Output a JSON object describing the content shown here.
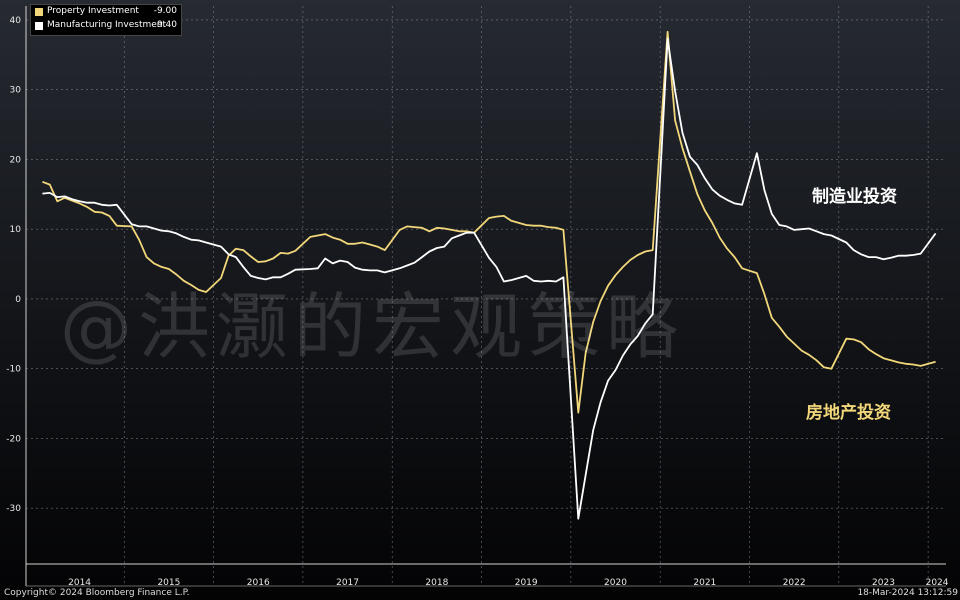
{
  "legend": {
    "items": [
      {
        "label": "Property Investment",
        "value": "-9.00",
        "color": "#f2d77a"
      },
      {
        "label": "Manufacturing Investment",
        "value": "9.40",
        "color": "#ffffff"
      }
    ]
  },
  "watermark": "@洪灏的宏观策略",
  "annotations": {
    "manufacturing": "制造业投资",
    "property": "房地产投资"
  },
  "footer": {
    "copyright": "Copyright© 2024 Bloomberg Finance L.P.",
    "timestamp": "18-Mar-2024 13:12:59"
  },
  "chart_data": {
    "type": "line",
    "ylim": [
      -38,
      42
    ],
    "yticks": [
      40,
      30,
      20,
      10,
      0,
      -10,
      -20,
      -30
    ],
    "grid": true,
    "legend_position": "top-left",
    "x_years": [
      "2014",
      "2015",
      "2016",
      "2017",
      "2018",
      "2019",
      "2020",
      "2021",
      "2022",
      "2023",
      "2024"
    ],
    "series": [
      {
        "name": "Property Investment",
        "color": "#f2d77a",
        "x": [
          "2014-02",
          "2014-03",
          "2014-04",
          "2014-05",
          "2014-06",
          "2014-07",
          "2014-08",
          "2014-09",
          "2014-10",
          "2014-11",
          "2014-12",
          "2015-02",
          "2015-03",
          "2015-04",
          "2015-05",
          "2015-06",
          "2015-07",
          "2015-08",
          "2015-09",
          "2015-10",
          "2015-11",
          "2015-12",
          "2016-02",
          "2016-03",
          "2016-04",
          "2016-05",
          "2016-06",
          "2016-07",
          "2016-08",
          "2016-09",
          "2016-10",
          "2016-11",
          "2016-12",
          "2017-02",
          "2017-03",
          "2017-04",
          "2017-05",
          "2017-06",
          "2017-07",
          "2017-08",
          "2017-09",
          "2017-10",
          "2017-11",
          "2017-12",
          "2018-02",
          "2018-03",
          "2018-04",
          "2018-05",
          "2018-06",
          "2018-07",
          "2018-08",
          "2018-09",
          "2018-10",
          "2018-11",
          "2018-12",
          "2019-02",
          "2019-03",
          "2019-04",
          "2019-05",
          "2019-06",
          "2019-07",
          "2019-08",
          "2019-09",
          "2019-10",
          "2019-11",
          "2019-12",
          "2020-02",
          "2020-03",
          "2020-04",
          "2020-05",
          "2020-06",
          "2020-07",
          "2020-08",
          "2020-09",
          "2020-10",
          "2020-11",
          "2020-12",
          "2021-02",
          "2021-03",
          "2021-04",
          "2021-05",
          "2021-06",
          "2021-07",
          "2021-08",
          "2021-09",
          "2021-10",
          "2021-11",
          "2021-12",
          "2022-02",
          "2022-03",
          "2022-04",
          "2022-05",
          "2022-06",
          "2022-07",
          "2022-08",
          "2022-09",
          "2022-10",
          "2022-11",
          "2022-12",
          "2023-02",
          "2023-03",
          "2023-04",
          "2023-05",
          "2023-06",
          "2023-07",
          "2023-08",
          "2023-09",
          "2023-10",
          "2023-11",
          "2023-12",
          "2024-02"
        ],
        "values": [
          16.8,
          16.4,
          14.0,
          14.5,
          14.1,
          13.7,
          13.2,
          12.5,
          12.4,
          11.9,
          10.5,
          10.4,
          8.5,
          6.0,
          5.1,
          4.6,
          4.3,
          3.5,
          2.6,
          2.0,
          1.3,
          1.0,
          3.0,
          6.2,
          7.2,
          7.0,
          6.1,
          5.3,
          5.4,
          5.8,
          6.6,
          6.5,
          6.9,
          8.9,
          9.1,
          9.3,
          8.8,
          8.5,
          7.9,
          7.9,
          8.1,
          7.8,
          7.5,
          7.0,
          9.9,
          10.4,
          10.3,
          10.2,
          9.7,
          10.2,
          10.1,
          9.9,
          9.7,
          9.7,
          9.5,
          11.6,
          11.8,
          11.9,
          11.2,
          10.9,
          10.6,
          10.5,
          10.5,
          10.3,
          10.2,
          9.9,
          -16.3,
          -7.7,
          -3.3,
          -0.3,
          1.9,
          3.4,
          4.6,
          5.6,
          6.3,
          6.8,
          7.0,
          38.3,
          25.6,
          21.6,
          18.3,
          15.0,
          12.7,
          10.9,
          8.8,
          7.2,
          6.0,
          4.4,
          3.7,
          0.7,
          -2.7,
          -4.0,
          -5.4,
          -6.4,
          -7.4,
          -8.0,
          -8.8,
          -9.8,
          -10.0,
          -5.7,
          -5.8,
          -6.2,
          -7.2,
          -7.9,
          -8.5,
          -8.8,
          -9.1,
          -9.3,
          -9.4,
          -9.6,
          -9.0
        ]
      },
      {
        "name": "Manufacturing Investment",
        "color": "#ffffff",
        "x": [
          "2014-02",
          "2014-03",
          "2014-04",
          "2014-05",
          "2014-06",
          "2014-07",
          "2014-08",
          "2014-09",
          "2014-10",
          "2014-11",
          "2014-12",
          "2015-02",
          "2015-03",
          "2015-04",
          "2015-05",
          "2015-06",
          "2015-07",
          "2015-08",
          "2015-09",
          "2015-10",
          "2015-11",
          "2015-12",
          "2016-02",
          "2016-03",
          "2016-04",
          "2016-05",
          "2016-06",
          "2016-07",
          "2016-08",
          "2016-09",
          "2016-10",
          "2016-11",
          "2016-12",
          "2017-02",
          "2017-03",
          "2017-04",
          "2017-05",
          "2017-06",
          "2017-07",
          "2017-08",
          "2017-09",
          "2017-10",
          "2017-11",
          "2017-12",
          "2018-02",
          "2018-03",
          "2018-04",
          "2018-05",
          "2018-06",
          "2018-07",
          "2018-08",
          "2018-09",
          "2018-10",
          "2018-11",
          "2018-12",
          "2019-02",
          "2019-03",
          "2019-04",
          "2019-05",
          "2019-06",
          "2019-07",
          "2019-08",
          "2019-09",
          "2019-10",
          "2019-11",
          "2019-12",
          "2020-02",
          "2020-03",
          "2020-04",
          "2020-05",
          "2020-06",
          "2020-07",
          "2020-08",
          "2020-09",
          "2020-10",
          "2020-11",
          "2020-12",
          "2021-02",
          "2021-03",
          "2021-04",
          "2021-05",
          "2021-06",
          "2021-07",
          "2021-08",
          "2021-09",
          "2021-10",
          "2021-11",
          "2021-12",
          "2022-02",
          "2022-03",
          "2022-04",
          "2022-05",
          "2022-06",
          "2022-07",
          "2022-08",
          "2022-09",
          "2022-10",
          "2022-11",
          "2022-12",
          "2023-02",
          "2023-03",
          "2023-04",
          "2023-05",
          "2023-06",
          "2023-07",
          "2023-08",
          "2023-09",
          "2023-10",
          "2023-11",
          "2023-12",
          "2024-02"
        ],
        "values": [
          15.1,
          15.2,
          14.6,
          14.7,
          14.3,
          14.0,
          13.8,
          13.8,
          13.5,
          13.4,
          13.5,
          10.7,
          10.4,
          10.4,
          10.1,
          9.8,
          9.7,
          9.4,
          8.9,
          8.5,
          8.4,
          8.1,
          7.5,
          6.4,
          6.0,
          4.6,
          3.3,
          3.0,
          2.8,
          3.1,
          3.1,
          3.6,
          4.2,
          4.3,
          4.4,
          5.8,
          5.1,
          5.5,
          5.3,
          4.5,
          4.2,
          4.1,
          4.1,
          3.8,
          4.4,
          4.8,
          5.2,
          6.0,
          6.8,
          7.3,
          7.5,
          8.7,
          9.1,
          9.5,
          9.5,
          5.9,
          4.6,
          2.5,
          2.7,
          3.0,
          3.3,
          2.6,
          2.5,
          2.6,
          2.5,
          3.1,
          -31.5,
          -25.2,
          -18.8,
          -14.8,
          -11.7,
          -10.2,
          -8.1,
          -6.5,
          -5.3,
          -3.5,
          -2.2,
          37.3,
          29.8,
          23.8,
          20.4,
          19.2,
          17.3,
          15.7,
          14.8,
          14.2,
          13.7,
          13.5,
          20.9,
          15.6,
          12.2,
          10.6,
          10.4,
          9.9,
          10.0,
          10.1,
          9.7,
          9.3,
          9.1,
          8.1,
          7.0,
          6.4,
          6.0,
          6.0,
          5.7,
          5.9,
          6.2,
          6.2,
          6.3,
          6.5,
          9.4
        ]
      }
    ]
  }
}
